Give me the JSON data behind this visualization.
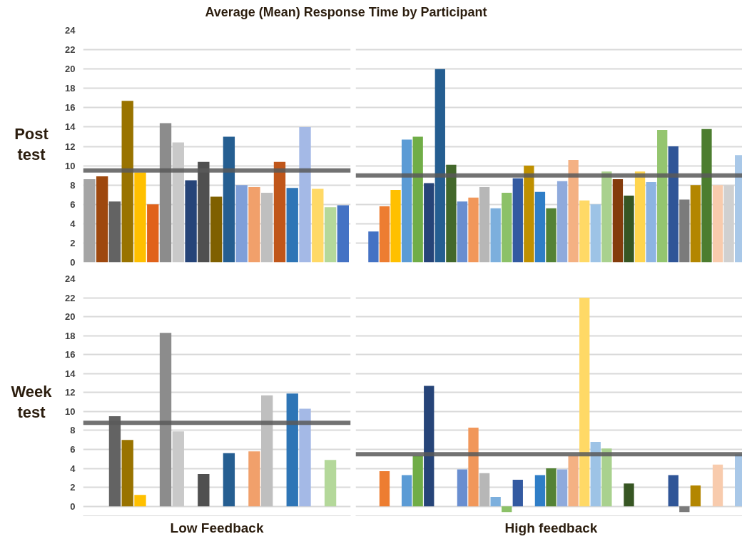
{
  "chart_data": [
    {
      "type": "bar",
      "title": "Average (Mean) Response Time by Participant",
      "ylabel": "Post test",
      "categories": [
        null,
        null,
        null,
        null,
        null,
        null,
        null,
        null,
        null,
        null,
        null,
        null,
        null,
        null,
        null,
        null,
        null,
        null,
        null,
        null,
        null
      ],
      "values": [
        8.6,
        8.9,
        6.3,
        16.7,
        9.3,
        6.0,
        14.4,
        12.4,
        8.5,
        10.4,
        6.8,
        13.0,
        8.0,
        7.8,
        7.2,
        10.4,
        7.7,
        14.0,
        7.6,
        5.7,
        5.9
      ],
      "colors": [
        "#a5a5a5",
        "#9e480e",
        "#636363",
        "#997300",
        "#ffc000",
        "#e0621b",
        "#8c8c8c",
        "#c9c9c9",
        "#264478",
        "#505050",
        "#7f6000",
        "#255e91",
        "#7f9fd9",
        "#f1a06b",
        "#bfbfbf",
        "#c0561a",
        "#2e75b6",
        "#a4b9e6",
        "#ffd966",
        "#b4d89a",
        "#4472c4"
      ],
      "ylim": [
        0,
        24
      ],
      "yticks": [
        0,
        2,
        4,
        6,
        8,
        10,
        12,
        14,
        16,
        18,
        20,
        22,
        24
      ],
      "grid": "y",
      "tick_labels": "y",
      "ref_lines": [
        {
          "axis": "y",
          "value": 9.5,
          "color": "#595959"
        }
      ]
    },
    {
      "type": "bar",
      "categories": [
        null,
        null,
        null,
        null,
        null,
        null,
        null,
        null,
        null,
        null,
        null,
        null,
        null,
        null,
        null,
        null,
        null,
        null,
        null,
        null,
        null,
        null,
        null,
        null,
        null,
        null,
        null,
        null,
        null,
        null,
        null,
        null,
        null,
        null
      ],
      "values": [
        3.2,
        5.8,
        7.5,
        12.7,
        13.0,
        8.2,
        20.0,
        10.1,
        6.3,
        6.7,
        7.8,
        5.6,
        7.2,
        8.7,
        10.0,
        7.3,
        5.6,
        8.4,
        10.6,
        6.4,
        6.0,
        9.4,
        8.6,
        6.9,
        9.4,
        8.3,
        13.7,
        12.0,
        6.5,
        8.0,
        13.8,
        8.0,
        8.0,
        11.1
      ],
      "colors": [
        "#4472c4",
        "#ed7d31",
        "#ffc000",
        "#5b9bd5",
        "#70ad47",
        "#264478",
        "#255e91",
        "#43682b",
        "#698ed0",
        "#f1975a",
        "#b7b7b7",
        "#7cafdd",
        "#8cc168",
        "#335aa1",
        "#bf9000",
        "#2f7ec7",
        "#548235",
        "#8faadc",
        "#f4b183",
        "#ffd966",
        "#9dc3e6",
        "#a9d18e",
        "#843c0c",
        "#375623",
        "#ffd54f",
        "#8db4e2",
        "#94c56f",
        "#2f5597",
        "#7b7b7b",
        "#b38600",
        "#4c7d2f",
        "#f8cbad",
        "#d0d0d0",
        "#a9c8e8"
      ],
      "ylim": [
        0,
        24
      ],
      "yticks": [
        0,
        2,
        4,
        6,
        8,
        10,
        12,
        14,
        16,
        18,
        20,
        22,
        24
      ],
      "grid": "y",
      "tick_labels": false,
      "ref_lines": [
        {
          "axis": "y",
          "value": 9.0,
          "color": "#595959"
        }
      ]
    },
    {
      "type": "bar",
      "ylabel": "Week test",
      "xlabel": "Low Feedback",
      "categories": [
        null,
        null,
        null,
        null,
        null,
        null,
        null,
        null,
        null,
        null,
        null,
        null,
        null,
        null,
        null,
        null,
        null,
        null,
        null,
        null,
        null
      ],
      "values": [
        null,
        null,
        9.5,
        7.0,
        1.2,
        null,
        18.3,
        7.9,
        null,
        3.4,
        null,
        5.6,
        null,
        5.8,
        11.7,
        null,
        11.9,
        10.3,
        null,
        4.9,
        null
      ],
      "colors": [
        null,
        null,
        "#636363",
        "#997300",
        "#ffc000",
        null,
        "#8c8c8c",
        "#c9c9c9",
        null,
        "#505050",
        null,
        "#255e91",
        null,
        "#f1a06b",
        "#bfbfbf",
        null,
        "#2e75b6",
        "#a4b9e6",
        null,
        "#b4d89a",
        null
      ],
      "ylim": [
        -1,
        24
      ],
      "yticks": [
        0,
        2,
        4,
        6,
        8,
        10,
        12,
        14,
        16,
        18,
        20,
        22,
        24
      ],
      "grid": "y",
      "tick_labels": "y",
      "ref_lines": [
        {
          "axis": "y",
          "value": 8.8,
          "color": "#595959"
        }
      ]
    },
    {
      "type": "bar",
      "xlabel": "High feedback",
      "categories": [
        null,
        null,
        null,
        null,
        null,
        null,
        null,
        null,
        null,
        null,
        null,
        null,
        null,
        null,
        null,
        null,
        null,
        null,
        null,
        null,
        null,
        null,
        null,
        null,
        null,
        null,
        null,
        null,
        null,
        null,
        null,
        null,
        null,
        null
      ],
      "values": [
        null,
        3.7,
        null,
        3.3,
        5.3,
        12.7,
        null,
        null,
        3.9,
        8.3,
        3.5,
        1.0,
        -0.6,
        2.8,
        null,
        3.3,
        4.0,
        3.9,
        5.3,
        22.0,
        6.8,
        6.1,
        null,
        2.4,
        null,
        null,
        null,
        3.3,
        -0.6,
        2.2,
        null,
        4.4,
        null,
        5.5
      ],
      "colors": [
        null,
        "#ed7d31",
        null,
        "#5b9bd5",
        "#70ad47",
        "#264478",
        null,
        null,
        "#698ed0",
        "#f1975a",
        "#b7b7b7",
        "#7cafdd",
        "#8cc168",
        "#335aa1",
        null,
        "#2f7ec7",
        "#548235",
        "#8faadc",
        "#f4b183",
        "#ffd966",
        "#9dc3e6",
        "#a9d18e",
        null,
        "#375623",
        null,
        null,
        null,
        "#2f5597",
        "#7b7b7b",
        "#b38600",
        null,
        "#f8cbad",
        null,
        "#a9c8e8"
      ],
      "ylim": [
        -1,
        24
      ],
      "yticks": [
        0,
        2,
        4,
        6,
        8,
        10,
        12,
        14,
        16,
        18,
        20,
        22,
        24
      ],
      "grid": "y",
      "tick_labels": false,
      "ref_lines": [
        {
          "axis": "y",
          "value": 5.5,
          "color": "#595959"
        }
      ]
    }
  ]
}
